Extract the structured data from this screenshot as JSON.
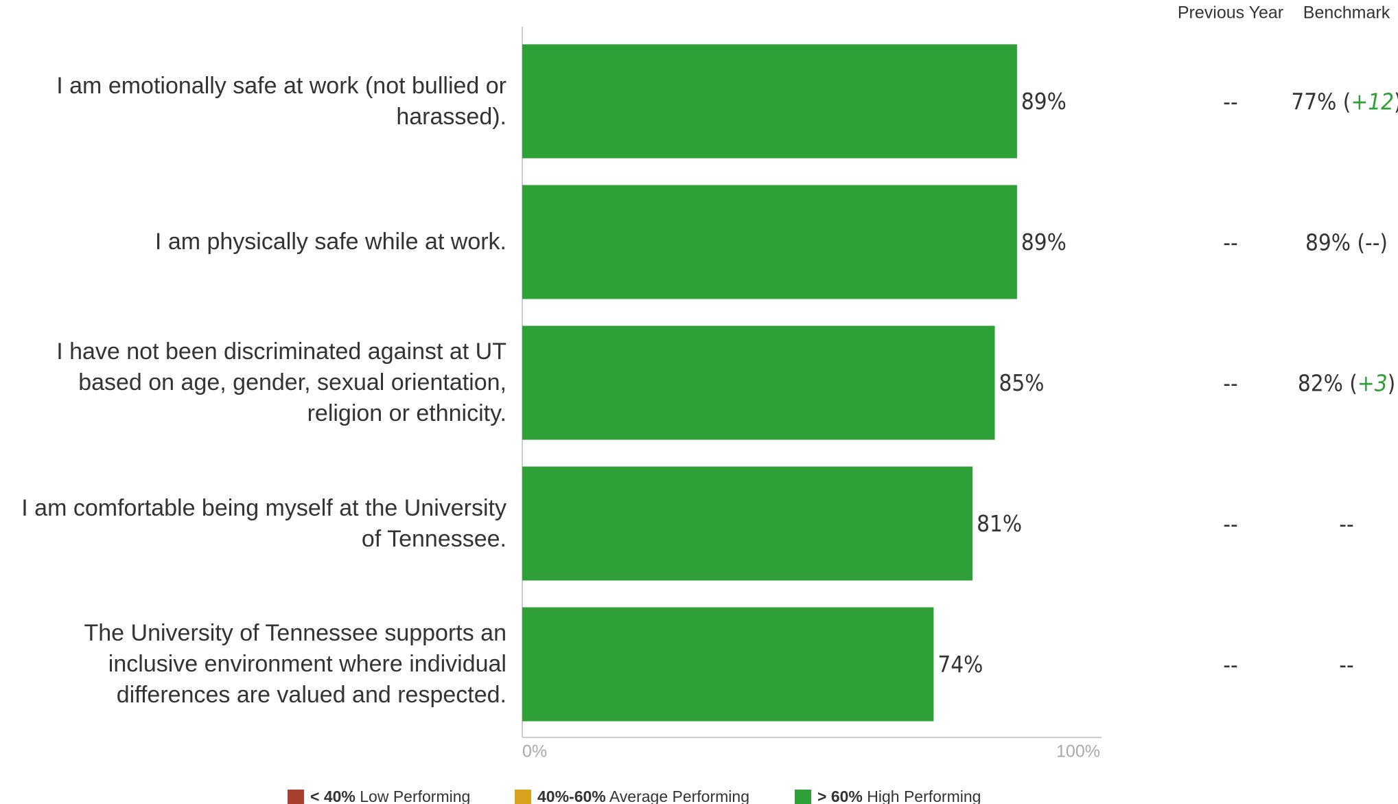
{
  "chart_data": {
    "type": "bar",
    "orientation": "horizontal",
    "categories": [
      "I am emotionally safe at work (not bullied or harassed).",
      "I am physically safe while at work.",
      "I have not been discriminated against at UT based on age, gender, sexual orientation, religion or ethnicity.",
      "I am comfortable being myself at the University of Tennessee.",
      "The University of Tennessee supports an inclusive environment where individual differences are valued and respected."
    ],
    "values": [
      89,
      89,
      85,
      81,
      74
    ],
    "value_labels": [
      "89%",
      "89%",
      "85%",
      "81%",
      "74%"
    ],
    "color": "#2ea037",
    "xlim": [
      0,
      100
    ],
    "xticks": [
      {
        "value": 0,
        "label": "0%"
      },
      {
        "value": 100,
        "label": "100%"
      }
    ],
    "columns": [
      {
        "title": "Previous Year",
        "cells": [
          [
            {
              "text": "--"
            }
          ],
          [
            {
              "text": "--"
            }
          ],
          [
            {
              "text": "--"
            }
          ],
          [
            {
              "text": "--"
            }
          ],
          [
            {
              "text": "--"
            }
          ]
        ]
      },
      {
        "title": "Benchmark",
        "cells": [
          [
            {
              "text": "77% ("
            },
            {
              "text": "+12",
              "color": "#2ea037",
              "italic": true
            },
            {
              "text": ")"
            }
          ],
          [
            {
              "text": "89% (--)"
            }
          ],
          [
            {
              "text": "82% ("
            },
            {
              "text": "+3",
              "color": "#2ea037",
              "italic": true
            },
            {
              "text": ")"
            }
          ],
          [
            {
              "text": "--"
            }
          ],
          [
            {
              "text": "--"
            }
          ]
        ]
      }
    ],
    "legend": [
      {
        "color": "#a93f2e",
        "bold": "< 40%",
        "text": " Low Performing"
      },
      {
        "color": "#d9a21b",
        "bold": "40%-60%",
        "text": " Average Performing"
      },
      {
        "color": "#2ea037",
        "bold": "> 60%",
        "text": " High Performing"
      }
    ]
  }
}
